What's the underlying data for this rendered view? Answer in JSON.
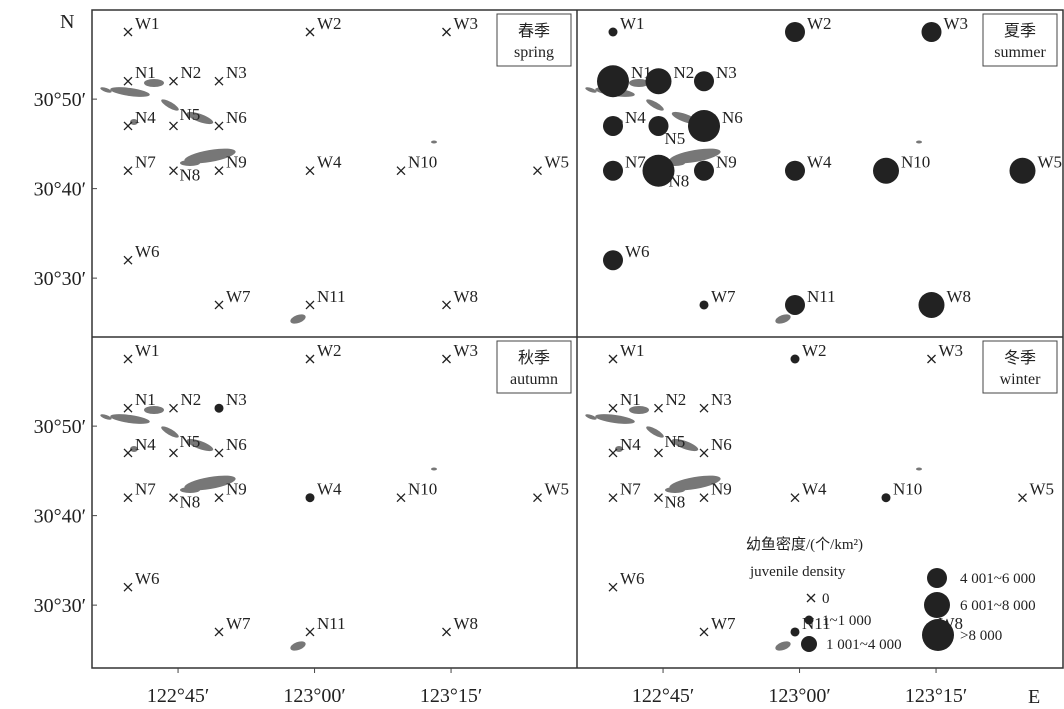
{
  "axis": {
    "north": "N",
    "east": "E",
    "lat_labels": [
      {
        "text": "30°50′",
        "lat": 50
      },
      {
        "text": "30°40′",
        "lat": 40
      },
      {
        "text": "30°30′",
        "lat": 30
      }
    ],
    "lon_labels": [
      {
        "text": "122°45′",
        "lon": 45
      },
      {
        "text": "123°00′",
        "lon": 60
      },
      {
        "text": "123°15′",
        "lon": 75
      }
    ]
  },
  "panels": [
    {
      "id": "spring",
      "season_cn": "春季",
      "season_en": "spring",
      "values": {
        "W1": 0,
        "W2": 0,
        "W3": 0,
        "N1": 0,
        "N2": 0,
        "N3": 0,
        "N4": 0,
        "N5": 0,
        "N6": 0,
        "N7": 0,
        "N8": 0,
        "N9": 0,
        "W4": 0,
        "N10": 0,
        "W5": 0,
        "W6": 0,
        "W7": 0,
        "N11": 0,
        "W8": 0
      }
    },
    {
      "id": "summer",
      "season_cn": "夏季",
      "season_en": "summer",
      "values": {
        "W1": 1,
        "W2": 3,
        "W3": 3,
        "N1": 5,
        "N2": 4,
        "N3": 3,
        "N4": 3,
        "N5": 3,
        "N6": 5,
        "N7": 3,
        "N8": 5,
        "N9": 3,
        "W4": 3,
        "N10": 4,
        "W5": 4,
        "W6": 3,
        "W7": 1,
        "N11": 3,
        "W8": 4
      }
    },
    {
      "id": "autumn",
      "season_cn": "秋季",
      "season_en": "autumn",
      "values": {
        "W1": 0,
        "W2": 0,
        "W3": 0,
        "N1": 0,
        "N2": 0,
        "N3": 1,
        "N4": 0,
        "N5": 0,
        "N6": 0,
        "N7": 0,
        "N8": 0,
        "N9": 0,
        "W4": 1,
        "N10": 0,
        "W5": 0,
        "W6": 0,
        "W7": 0,
        "N11": 0,
        "W8": 0
      }
    },
    {
      "id": "winter",
      "season_cn": "冬季",
      "season_en": "winter",
      "values": {
        "W1": 0,
        "W2": 1,
        "W3": 0,
        "N1": 0,
        "N2": 0,
        "N3": 0,
        "N4": 0,
        "N5": 0,
        "N6": 0,
        "N7": 0,
        "N8": 0,
        "N9": 0,
        "W4": 0,
        "N10": 1,
        "W5": 0,
        "W6": 0,
        "W7": 0,
        "N11": 1,
        "W8": 0
      }
    }
  ],
  "stations": [
    {
      "id": "W1",
      "lon": 39.5,
      "lat": 57.5
    },
    {
      "id": "W2",
      "lon": 59.5,
      "lat": 57.5
    },
    {
      "id": "W3",
      "lon": 74.5,
      "lat": 57.5
    },
    {
      "id": "N1",
      "lon": 39.5,
      "lat": 52
    },
    {
      "id": "N2",
      "lon": 44.5,
      "lat": 52
    },
    {
      "id": "N3",
      "lon": 49.5,
      "lat": 52
    },
    {
      "id": "N4",
      "lon": 39.5,
      "lat": 47
    },
    {
      "id": "N5",
      "lon": 44.5,
      "lat": 47
    },
    {
      "id": "N6",
      "lon": 49.5,
      "lat": 47
    },
    {
      "id": "N7",
      "lon": 39.5,
      "lat": 42
    },
    {
      "id": "N8",
      "lon": 44.5,
      "lat": 42
    },
    {
      "id": "N9",
      "lon": 49.5,
      "lat": 42
    },
    {
      "id": "W4",
      "lon": 59.5,
      "lat": 42
    },
    {
      "id": "N10",
      "lon": 69.5,
      "lat": 42
    },
    {
      "id": "W5",
      "lon": 84.5,
      "lat": 42
    },
    {
      "id": "W6",
      "lon": 39.5,
      "lat": 32
    },
    {
      "id": "W7",
      "lon": 49.5,
      "lat": 27
    },
    {
      "id": "N11",
      "lon": 59.5,
      "lat": 27
    },
    {
      "id": "W8",
      "lon": 74.5,
      "lat": 27
    }
  ],
  "legend": {
    "title_cn": "幼鱼密度/(个/km²)",
    "title_en": "juvenile density",
    "items": [
      {
        "level": 0,
        "label": "0"
      },
      {
        "level": 1,
        "label": "1~1 000"
      },
      {
        "level": 2,
        "label": "1 001~4 000"
      },
      {
        "level": 3,
        "label": "4 001~6 000"
      },
      {
        "level": 4,
        "label": "6 001~8 000"
      },
      {
        "level": 5,
        "label": ">8 000"
      }
    ]
  },
  "colors": {
    "marker": "#222222",
    "island": "#777777",
    "frame": "#333333"
  }
}
